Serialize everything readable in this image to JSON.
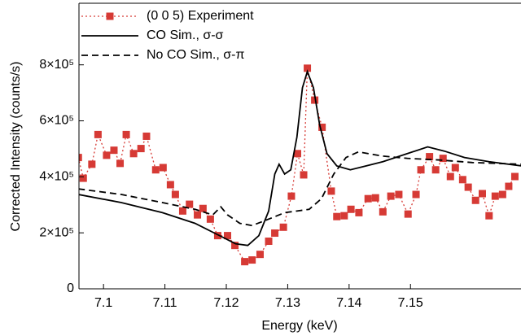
{
  "chart_data": {
    "type": "line",
    "x_label": "Energy (keV)",
    "y_label": "Corrected Intensity (counts/s)",
    "xlim": [
      7.096,
      7.168
    ],
    "xticks": [
      7.1,
      7.11,
      7.12,
      7.13,
      7.14,
      7.15
    ],
    "ylim": [
      0,
      1020000
    ],
    "yticks": [
      0,
      {
        "value": 200000,
        "label": "2×10⁵"
      },
      {
        "value": 400000,
        "label": "4×10⁵"
      },
      {
        "value": 600000,
        "label": "6×10⁵"
      },
      {
        "value": 800000,
        "label": "8×10⁵"
      }
    ],
    "legend": "upper left",
    "series": [
      {
        "name": "(0 0 5) Experiment",
        "color": "#d63a35",
        "line_style": "dotted",
        "marker": "square",
        "x": [
          7.0959,
          7.0967,
          7.0981,
          7.0991,
          7.1005,
          7.1017,
          7.1027,
          7.1037,
          7.1049,
          7.1061,
          7.107,
          7.1085,
          7.1097,
          7.1109,
          7.1117,
          7.1129,
          7.114,
          7.1153,
          7.1162,
          7.1174,
          7.1186,
          7.1202,
          7.1214,
          7.123,
          7.1242,
          7.1255,
          7.1269,
          7.1279,
          7.1293,
          7.1306,
          7.1316,
          7.1326,
          7.1332,
          7.1344,
          7.1356,
          7.1371,
          7.138,
          7.1392,
          7.1403,
          7.1416,
          7.1431,
          7.1443,
          7.1455,
          7.1468,
          7.1481,
          7.1496,
          7.1509,
          7.1517,
          7.1531,
          7.1541,
          7.1553,
          7.1565,
          7.1573,
          7.1585,
          7.1594,
          7.1606,
          7.1617,
          7.1628,
          7.1638,
          7.165,
          7.166,
          7.167
        ],
        "values": [
          469000,
          395000,
          445000,
          551000,
          477000,
          495000,
          448000,
          551000,
          483000,
          501000,
          545000,
          425000,
          433000,
          372000,
          337000,
          278000,
          302000,
          264000,
          287000,
          249000,
          190000,
          190000,
          155000,
          97000,
          103000,
          123000,
          170000,
          199000,
          220000,
          331000,
          483000,
          407000,
          788000,
          674000,
          577000,
          349000,
          258000,
          261000,
          284000,
          272000,
          322000,
          325000,
          275000,
          331000,
          337000,
          267000,
          337000,
          425000,
          472000,
          425000,
          466000,
          401000,
          433000,
          390000,
          363000,
          316000,
          340000,
          261000,
          331000,
          337000,
          366000,
          401000
        ]
      },
      {
        "name": "CO Sim., σ-σ",
        "color": "#000000",
        "line_style": "solid",
        "marker": null,
        "x": [
          7.0959,
          7.1029,
          7.1096,
          7.1149,
          7.1189,
          7.1215,
          7.1235,
          7.1253,
          7.1269,
          7.1279,
          7.1286,
          7.1295,
          7.1305,
          7.1315,
          7.1324,
          7.1332,
          7.1342,
          7.1352,
          7.1364,
          7.138,
          7.1402,
          7.1428,
          7.1455,
          7.1495,
          7.1528,
          7.1555,
          7.1588,
          7.1628,
          7.1681
        ],
        "values": [
          337000,
          308000,
          272000,
          234000,
          190000,
          161000,
          155000,
          190000,
          278000,
          410000,
          445000,
          410000,
          425000,
          542000,
          718000,
          776000,
          718000,
          586000,
          483000,
          439000,
          425000,
          439000,
          454000,
          483000,
          507000,
          492000,
          469000,
          454000,
          439000
        ]
      },
      {
        "name": "No CO Sim., σ-π",
        "color": "#000000",
        "line_style": "dashed",
        "marker": null,
        "x": [
          7.0959,
          7.1029,
          7.1096,
          7.1149,
          7.1178,
          7.1191,
          7.1202,
          7.1222,
          7.1242,
          7.1269,
          7.1295,
          7.1315,
          7.1335,
          7.1355,
          7.1375,
          7.1395,
          7.1415,
          7.1455,
          7.1495,
          7.1548,
          7.1601,
          7.1681
        ],
        "values": [
          357000,
          337000,
          308000,
          284000,
          264000,
          293000,
          264000,
          234000,
          226000,
          249000,
          272000,
          278000,
          284000,
          322000,
          410000,
          469000,
          489000,
          474000,
          466000,
          460000,
          451000,
          445000
        ]
      }
    ]
  }
}
